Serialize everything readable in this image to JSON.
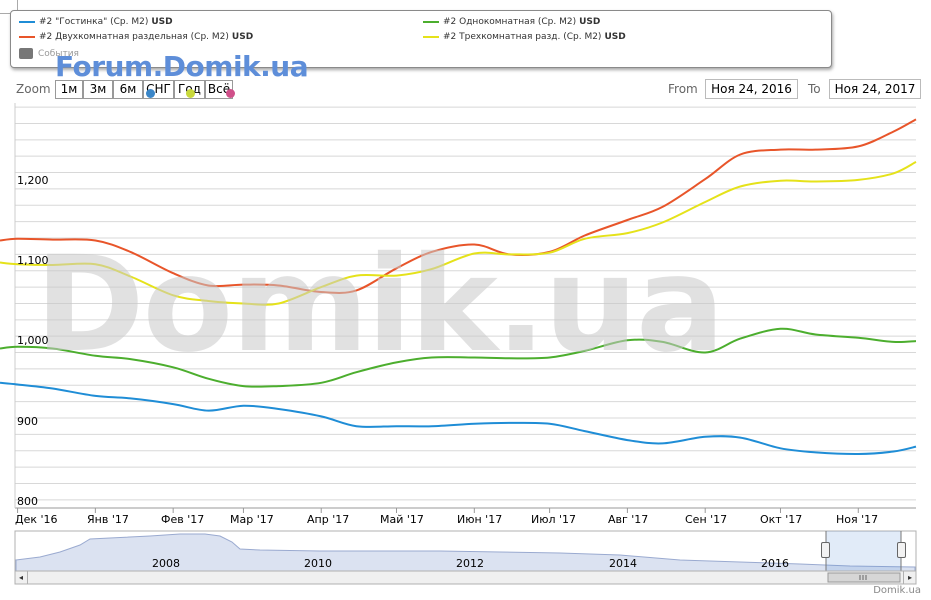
{
  "legend": {
    "items": [
      {
        "label": "#2 \"Гостинка\" (Ср. M2)",
        "unit": "USD",
        "color": "#1f8dd6"
      },
      {
        "label": "#2 Однокомнатная (Ср. M2)",
        "unit": "USD",
        "color": "#4cae2e"
      },
      {
        "label": "#2 Двухкомнатная раздельная (Ср. M2)",
        "unit": "USD",
        "color": "#e8552a"
      },
      {
        "label": "#2 Трехкомнатная разд. (Ср. M2)",
        "unit": "USD",
        "color": "#e5e21a"
      }
    ],
    "events_label": "События"
  },
  "watermarks": {
    "forum": "Forum.Domik.ua",
    "big": "Domik.ua"
  },
  "range_selector": {
    "zoom_label": "Zoom",
    "buttons": [
      "1м",
      "3м",
      "6м",
      "СНГ",
      "Год",
      "Всё"
    ],
    "from_label": "From",
    "from_value": "Ноя 24, 2016",
    "to_label": "To",
    "to_value": "Ноя 24, 2017"
  },
  "credit": "Domik.ua",
  "chart_data": {
    "type": "line",
    "ylim": [
      790,
      1285
    ],
    "y_ticks": [
      "800",
      "900",
      "1,000",
      "1,100",
      "1,200"
    ],
    "x_ticks": [
      "Дек '16",
      "Янв '17",
      "Фев '17",
      "Мар '17",
      "Апр '17",
      "Май '17",
      "Июн '17",
      "Июл '17",
      "Авг '17",
      "Сен '17",
      "Окт '17",
      "Ноя '17"
    ],
    "x": [
      "2016-11-24",
      "2016-12-01",
      "2016-12-15",
      "2017-01-01",
      "2017-01-15",
      "2017-02-01",
      "2017-02-15",
      "2017-03-01",
      "2017-03-15",
      "2017-04-01",
      "2017-04-15",
      "2017-05-01",
      "2017-05-15",
      "2017-06-01",
      "2017-06-15",
      "2017-07-01",
      "2017-07-15",
      "2017-08-01",
      "2017-08-15",
      "2017-09-01",
      "2017-09-15",
      "2017-10-01",
      "2017-10-15",
      "2017-11-01",
      "2017-11-15",
      "2017-11-24"
    ],
    "series": [
      {
        "name": "#2 \"Гостинка\" (Ср. M2)",
        "color": "#1f8dd6",
        "values": [
          943,
          941,
          936,
          927,
          924,
          917,
          909,
          915,
          911,
          902,
          890,
          890,
          890,
          893,
          894,
          893,
          884,
          873,
          869,
          877,
          876,
          863,
          858,
          856,
          859,
          865
        ]
      },
      {
        "name": "#2 Однокомнатная (Ср. M2)",
        "color": "#4cae2e",
        "values": [
          985,
          987,
          985,
          976,
          972,
          962,
          948,
          939,
          939,
          943,
          956,
          968,
          974,
          974,
          973,
          974,
          982,
          995,
          993,
          980,
          997,
          1009,
          1002,
          998,
          993,
          994
        ]
      },
      {
        "name": "#2 Двухкомнатная раздельная (Ср. M2)",
        "color": "#e8552a",
        "values": [
          1117,
          1119,
          1118,
          1117,
          1103,
          1077,
          1062,
          1063,
          1062,
          1054,
          1056,
          1083,
          1103,
          1112,
          1100,
          1103,
          1123,
          1142,
          1158,
          1192,
          1222,
          1228,
          1228,
          1232,
          1250,
          1265
        ]
      },
      {
        "name": "#2 Трехкомнатная разд. (Ср. M2)",
        "color": "#e5e21a",
        "values": [
          1090,
          1088,
          1087,
          1088,
          1073,
          1050,
          1043,
          1040,
          1040,
          1060,
          1074,
          1074,
          1082,
          1101,
          1100,
          1102,
          1119,
          1126,
          1139,
          1164,
          1183,
          1190,
          1189,
          1191,
          1199,
          1213
        ]
      }
    ]
  },
  "navigator": {
    "labels": [
      "2008",
      "2010",
      "2012",
      "2014",
      "2016"
    ]
  }
}
